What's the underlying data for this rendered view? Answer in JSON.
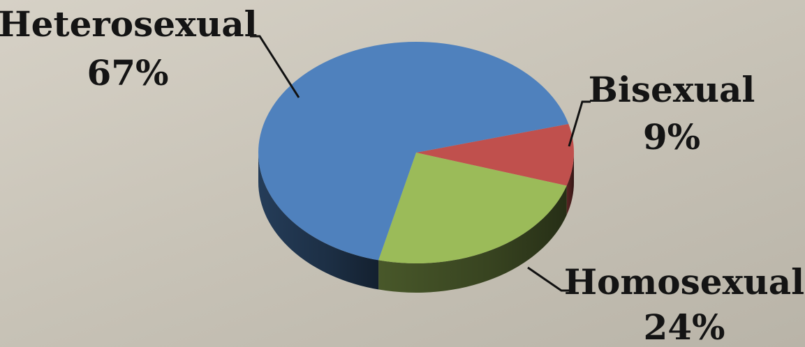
{
  "chart_data": {
    "type": "pie",
    "style": "3d",
    "slices": [
      {
        "label": "Heterosexual",
        "value": 67,
        "value_label": "67%",
        "color": "#4f81bd"
      },
      {
        "label": "Bisexual",
        "value": 9,
        "value_label": "9%",
        "color": "#c0504d"
      },
      {
        "label": "Homosexual",
        "value": 24,
        "value_label": "24%",
        "color": "#9bbb59"
      }
    ]
  }
}
